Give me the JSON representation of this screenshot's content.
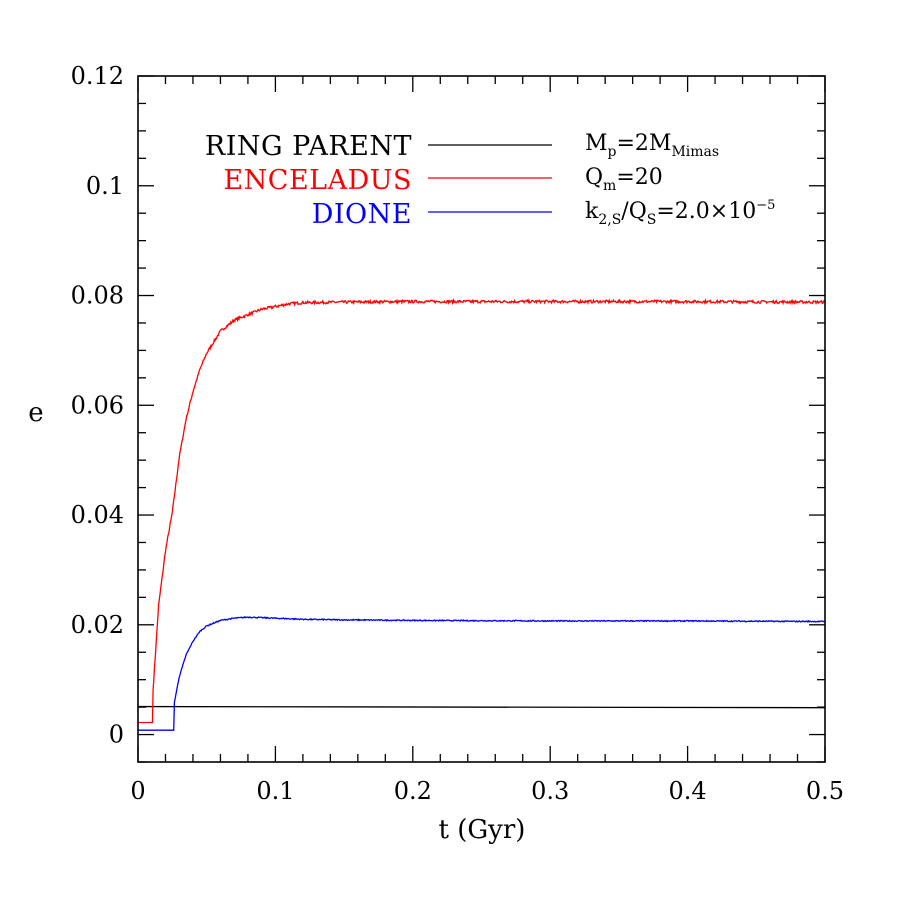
{
  "chart_data": {
    "type": "line",
    "xlabel": "t (Gyr)",
    "ylabel": "e",
    "xlim": [
      0,
      0.5
    ],
    "ylim": [
      -0.005,
      0.12
    ],
    "x_ticks": [
      0,
      0.1,
      0.2,
      0.3,
      0.4,
      0.5
    ],
    "x_tick_labels": [
      "0",
      "0.1",
      "0.2",
      "0.3",
      "0.4",
      "0.5"
    ],
    "y_ticks": [
      0,
      0.02,
      0.04,
      0.06,
      0.08,
      0.1,
      0.12
    ],
    "y_tick_labels": [
      "0",
      "0.02",
      "0.04",
      "0.06",
      "0.08",
      "0.1",
      "0.12"
    ],
    "grid": false,
    "legend_position": "top-left",
    "series": [
      {
        "name": "RING PARENT",
        "color": "#000000",
        "x": [
          0.0,
          0.5
        ],
        "y": [
          0.0051,
          0.0049
        ]
      },
      {
        "name": "ENCELADUS",
        "color": "#ff0000",
        "x": [
          0.0,
          0.0105,
          0.0108,
          0.015,
          0.02,
          0.025,
          0.03,
          0.035,
          0.04,
          0.045,
          0.05,
          0.055,
          0.06,
          0.065,
          0.07,
          0.08,
          0.09,
          0.1,
          0.11,
          0.12,
          0.15,
          0.2,
          0.3,
          0.4,
          0.5
        ],
        "y": [
          0.0022,
          0.0022,
          0.0075,
          0.0235,
          0.0335,
          0.0405,
          0.0505,
          0.0575,
          0.0625,
          0.0665,
          0.0695,
          0.0715,
          0.0735,
          0.0745,
          0.0755,
          0.0765,
          0.0775,
          0.078,
          0.0785,
          0.0787,
          0.0788,
          0.0789,
          0.0789,
          0.0789,
          0.0788
        ],
        "noise": 0.0005
      },
      {
        "name": "DIONE",
        "color": "#0000ff",
        "x": [
          0.0,
          0.026,
          0.0262,
          0.03,
          0.035,
          0.04,
          0.045,
          0.05,
          0.06,
          0.07,
          0.08,
          0.09,
          0.1,
          0.12,
          0.15,
          0.2,
          0.3,
          0.4,
          0.5
        ],
        "y": [
          0.0008,
          0.0008,
          0.0055,
          0.0105,
          0.0145,
          0.017,
          0.0188,
          0.0198,
          0.0208,
          0.0212,
          0.0214,
          0.0213,
          0.0212,
          0.021,
          0.0209,
          0.0208,
          0.0207,
          0.0207,
          0.0206
        ],
        "noise": 0.0002
      }
    ],
    "parameters": {
      "mass": {
        "base": "M",
        "sub1": "p",
        "mid": "=2M",
        "sub2": "Mimas"
      },
      "qm": {
        "base": "Q",
        "sub": "m",
        "rest": "=20"
      },
      "ratio": {
        "k": "k",
        "k_sub": "2,S",
        "slash": "/Q",
        "q_sub": "S",
        "value": "=2.0×10",
        "exp": "−5"
      }
    }
  }
}
